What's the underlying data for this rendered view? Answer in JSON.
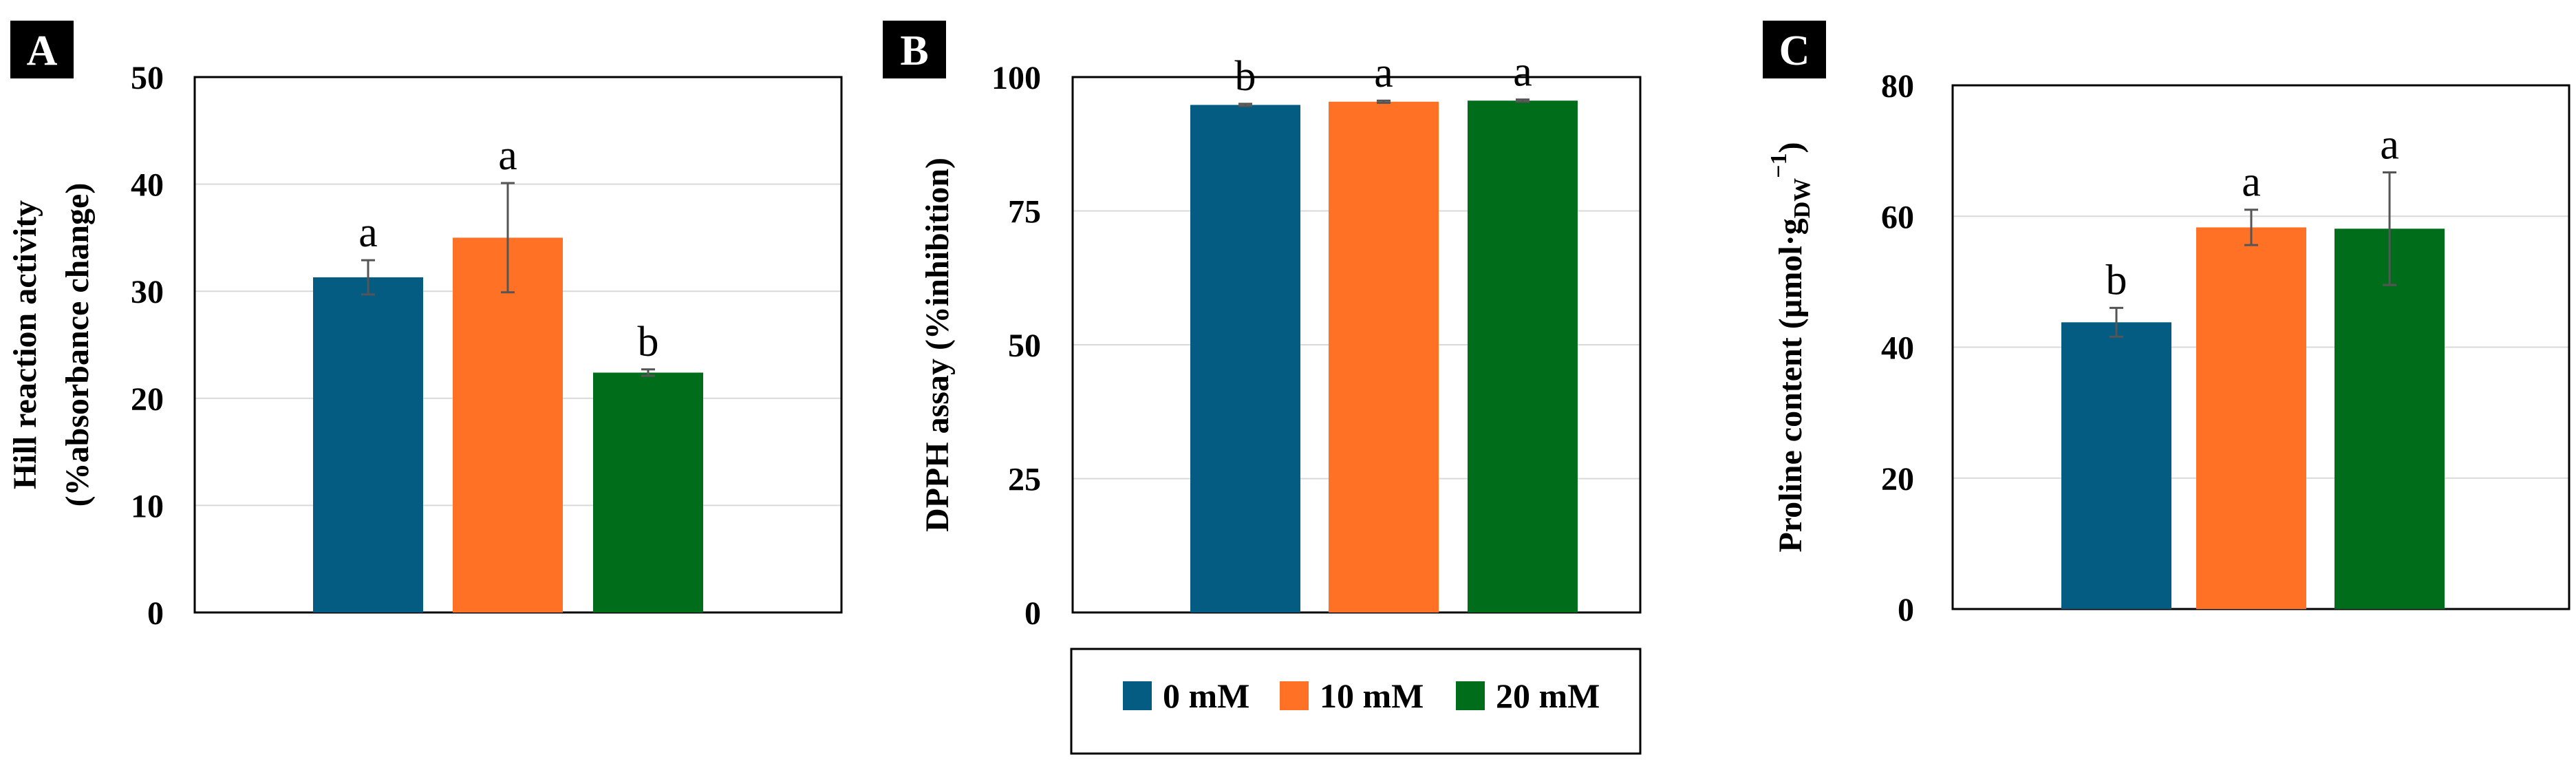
{
  "colors": {
    "0 mM": "#045C82",
    "10 mM": "#FF7124",
    "20 mM": "#006D1B"
  },
  "legend": {
    "items": [
      {
        "label": "0 mM",
        "color": "#045C82"
      },
      {
        "label": "10 mM",
        "color": "#FF7124"
      },
      {
        "label": "20 mM",
        "color": "#006D1B"
      }
    ]
  },
  "chart_data": [
    {
      "type": "bar",
      "panel": "A",
      "categories": [
        "0 mM",
        "10 mM",
        "20 mM"
      ],
      "values": [
        31.3,
        35.0,
        22.4
      ],
      "errors": [
        1.6,
        5.1,
        0.3
      ],
      "significance": [
        "a",
        "a",
        "b"
      ],
      "ylabel_line1": "Hill reaction activity",
      "ylabel_line2": "(%absorbance change)",
      "ylim": [
        0,
        50
      ],
      "yticks": [
        "0",
        "10",
        "20",
        "30",
        "40",
        "50"
      ],
      "tickvals": [
        0,
        10,
        20,
        30,
        40,
        50
      ]
    },
    {
      "type": "bar",
      "panel": "B",
      "categories": [
        "0 mM",
        "10 mM",
        "20 mM"
      ],
      "values": [
        94.8,
        95.4,
        95.6
      ],
      "errors": [
        0.2,
        0.2,
        0.2
      ],
      "significance": [
        "b",
        "a",
        "a"
      ],
      "ylabel_line1": "DPPH assay (%inhibition)",
      "ylabel_line2": "",
      "ylim": [
        0,
        100
      ],
      "yticks": [
        "0",
        "25",
        "50",
        "75",
        "100"
      ],
      "tickvals": [
        0,
        25,
        50,
        75,
        100
      ]
    },
    {
      "type": "bar",
      "panel": "C",
      "categories": [
        "0 mM",
        "10 mM",
        "20 mM"
      ],
      "values": [
        43.8,
        58.3,
        58.1
      ],
      "errors": [
        2.2,
        2.7,
        8.6
      ],
      "significance": [
        "b",
        "a",
        "a"
      ],
      "ylabel_main": "Proline content (µmol·g",
      "ylabel_sub": "DW",
      "ylabel_sup": "−1",
      "ylabel_close": ")",
      "ylim": [
        0,
        80
      ],
      "yticks": [
        "0",
        "20",
        "40",
        "60",
        "80"
      ],
      "tickvals": [
        0,
        20,
        40,
        60,
        80
      ]
    }
  ]
}
